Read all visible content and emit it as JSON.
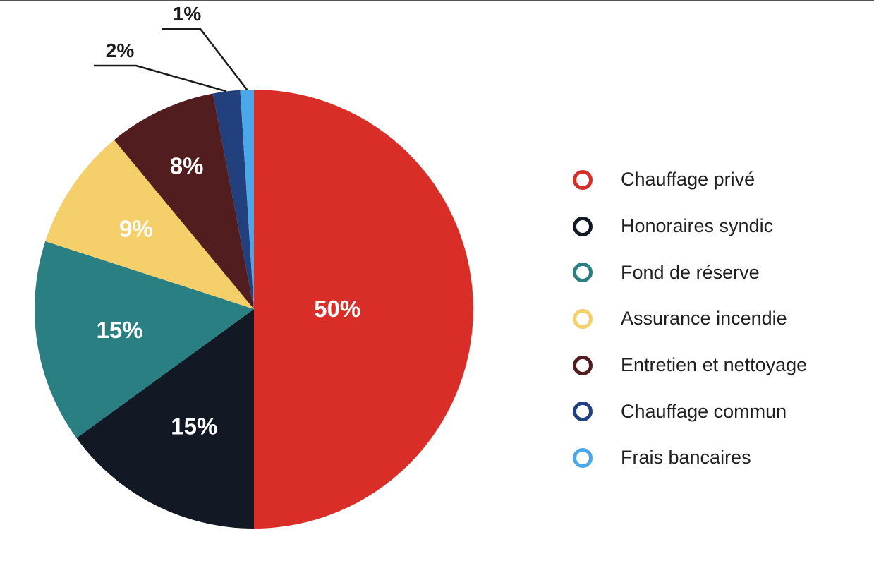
{
  "chart_data": {
    "type": "pie",
    "title": "",
    "slices": [
      {
        "name": "Chauffage privé",
        "value": 50,
        "label": "50%",
        "color": "#d92d28",
        "label_position": "inside"
      },
      {
        "name": "Honoraires syndic",
        "value": 15,
        "label": "15%",
        "color": "#121924",
        "label_position": "inside"
      },
      {
        "name": "Fond de réserve",
        "value": 15,
        "label": "15%",
        "color": "#2a7f83",
        "label_position": "inside"
      },
      {
        "name": "Assurance incendie",
        "value": 9,
        "label": "9%",
        "color": "#f5cf69",
        "label_position": "inside"
      },
      {
        "name": "Entretien et nettoyage",
        "value": 8,
        "label": "8%",
        "color": "#511d1e",
        "label_position": "inside"
      },
      {
        "name": "Chauffage commun",
        "value": 2,
        "label": "2%",
        "color": "#223f7e",
        "label_position": "outside"
      },
      {
        "name": "Frais bancaires",
        "value": 1,
        "label": "1%",
        "color": "#4aa8e8",
        "label_position": "outside"
      }
    ],
    "legend_position": "right"
  }
}
